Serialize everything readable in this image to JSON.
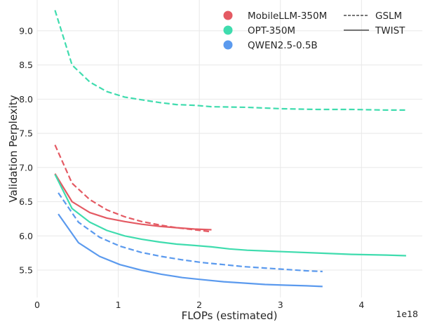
{
  "chart_data": {
    "type": "line",
    "xlabel": "FLOPs (estimated)",
    "ylabel": "Validation Perplexity",
    "x_offset_label": "1e18",
    "xlim": [
      0,
      4.75
    ],
    "ylim": [
      5.1,
      9.45
    ],
    "x_ticks": [
      0,
      1,
      2,
      3,
      4
    ],
    "y_ticks": [
      5.5,
      6.0,
      6.5,
      7.0,
      7.5,
      8.0,
      8.5,
      9.0
    ],
    "x_tick_labels": [
      "0",
      "1",
      "2",
      "3",
      "4"
    ],
    "y_tick_labels": [
      "5.5",
      "6.0",
      "6.5",
      "7.0",
      "7.5",
      "8.0",
      "8.5",
      "9.0"
    ],
    "grid": true,
    "legend_placement": "top-right",
    "models": [
      {
        "name": "MobileLLM-350M",
        "color": "#e45a63"
      },
      {
        "name": "OPT-350M",
        "color": "#3fdcae"
      },
      {
        "name": "QWEN2.5-0.5B",
        "color": "#5b9aee"
      }
    ],
    "styles": [
      {
        "name": "GSLM",
        "dash": "dashed"
      },
      {
        "name": "TWIST",
        "dash": "solid"
      }
    ],
    "series": [
      {
        "name": "MobileLLM-350M",
        "model": "MobileLLM-350M",
        "style": "GSLM",
        "color": "#e45a63",
        "dash": "dashed",
        "x": [
          0.22,
          0.43,
          0.65,
          0.86,
          1.08,
          1.29,
          1.51,
          1.72,
          1.94,
          2.15
        ],
        "y": [
          7.33,
          6.77,
          6.53,
          6.38,
          6.28,
          6.21,
          6.16,
          6.12,
          6.09,
          6.06
        ]
      },
      {
        "name": "MobileLLM-350M",
        "model": "MobileLLM-350M",
        "style": "TWIST",
        "color": "#e45a63",
        "dash": "solid",
        "x": [
          0.22,
          0.43,
          0.65,
          0.86,
          1.08,
          1.29,
          1.51,
          1.72,
          1.94,
          2.15
        ],
        "y": [
          6.91,
          6.5,
          6.34,
          6.26,
          6.21,
          6.17,
          6.14,
          6.12,
          6.1,
          6.09
        ]
      },
      {
        "name": "OPT-350M",
        "model": "OPT-350M",
        "style": "GSLM",
        "color": "#3fdcae",
        "dash": "dashed",
        "x": [
          0.22,
          0.43,
          0.65,
          0.86,
          1.08,
          1.29,
          1.51,
          1.72,
          1.94,
          2.15,
          2.59,
          3.02,
          3.45,
          3.88,
          4.31,
          4.55
        ],
        "y": [
          9.3,
          8.5,
          8.25,
          8.11,
          8.03,
          7.99,
          7.95,
          7.92,
          7.91,
          7.89,
          7.88,
          7.86,
          7.85,
          7.85,
          7.84,
          7.84
        ]
      },
      {
        "name": "OPT-350M",
        "model": "OPT-350M",
        "style": "TWIST",
        "color": "#3fdcae",
        "dash": "solid",
        "x": [
          0.22,
          0.43,
          0.65,
          0.86,
          1.08,
          1.29,
          1.51,
          1.72,
          1.94,
          2.15,
          2.37,
          2.59,
          3.02,
          3.45,
          3.88,
          4.31,
          4.55
        ],
        "y": [
          6.9,
          6.4,
          6.2,
          6.08,
          6.0,
          5.95,
          5.91,
          5.88,
          5.86,
          5.84,
          5.81,
          5.79,
          5.77,
          5.75,
          5.73,
          5.72,
          5.71
        ]
      },
      {
        "name": "QWEN2.5-0.5B",
        "model": "QWEN2.5-0.5B",
        "style": "GSLM",
        "color": "#5b9aee",
        "dash": "dashed",
        "x": [
          0.26,
          0.51,
          0.77,
          1.02,
          1.28,
          1.53,
          1.79,
          2.04,
          2.3,
          2.55,
          2.81,
          3.06,
          3.32,
          3.52
        ],
        "y": [
          6.63,
          6.2,
          5.98,
          5.85,
          5.76,
          5.7,
          5.65,
          5.61,
          5.58,
          5.55,
          5.53,
          5.51,
          5.49,
          5.48
        ]
      },
      {
        "name": "QWEN2.5-0.5B",
        "model": "QWEN2.5-0.5B",
        "style": "TWIST",
        "color": "#5b9aee",
        "dash": "solid",
        "x": [
          0.26,
          0.51,
          0.77,
          1.02,
          1.28,
          1.53,
          1.79,
          2.04,
          2.3,
          2.55,
          2.81,
          3.06,
          3.32,
          3.52
        ],
        "y": [
          6.32,
          5.9,
          5.7,
          5.58,
          5.5,
          5.44,
          5.39,
          5.36,
          5.33,
          5.31,
          5.29,
          5.28,
          5.27,
          5.26
        ]
      }
    ]
  }
}
